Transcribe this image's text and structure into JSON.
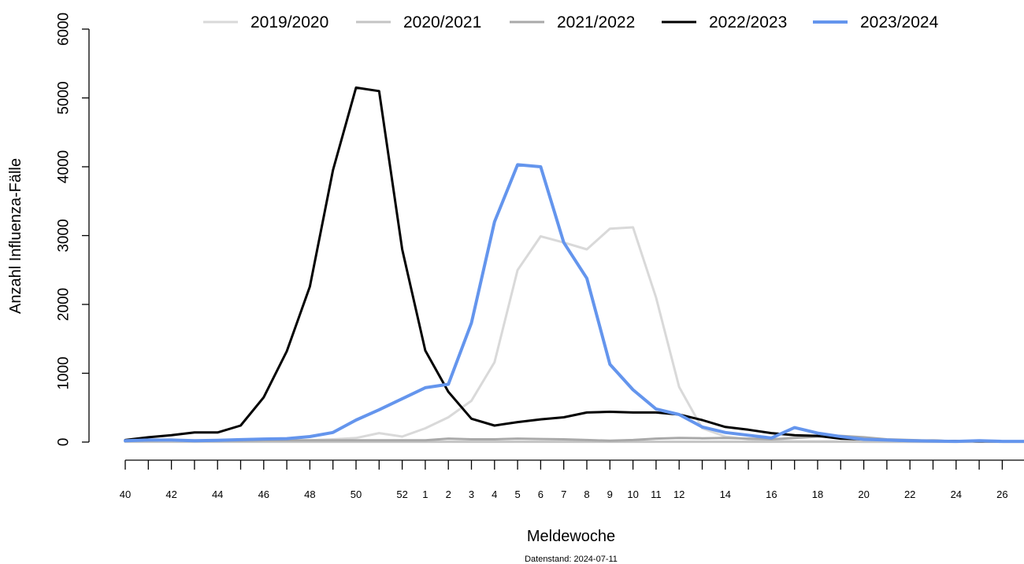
{
  "chart_data": {
    "type": "line",
    "title": "",
    "xlabel": "Meldewoche",
    "ylabel": "Anzahl Influenza-Fälle",
    "caption": "Datenstand: 2024-07-11",
    "ylim": [
      0,
      6000
    ],
    "yticks": [
      0,
      1000,
      2000,
      3000,
      4000,
      5000,
      6000
    ],
    "grid": false,
    "legend_position": "top",
    "x": [
      "40",
      "41",
      "42",
      "43",
      "44",
      "45",
      "46",
      "47",
      "48",
      "49",
      "50",
      "51",
      "52",
      "1",
      "2",
      "3",
      "4",
      "5",
      "6",
      "7",
      "8",
      "9",
      "10",
      "11",
      "12",
      "13",
      "14",
      "15",
      "16",
      "17",
      "18",
      "19",
      "20",
      "21",
      "22",
      "23",
      "24",
      "25",
      "26",
      "27"
    ],
    "x_tick_labels": [
      {
        "week": "40",
        "label": "40"
      },
      {
        "week": "42",
        "label": "42"
      },
      {
        "week": "44",
        "label": "44"
      },
      {
        "week": "46",
        "label": "46"
      },
      {
        "week": "48",
        "label": "48"
      },
      {
        "week": "50",
        "label": "50"
      },
      {
        "week": "52",
        "label": "52"
      },
      {
        "week": "1",
        "label": "1"
      },
      {
        "week": "2",
        "label": "2"
      },
      {
        "week": "3",
        "label": "3"
      },
      {
        "week": "4",
        "label": "4"
      },
      {
        "week": "5",
        "label": "5"
      },
      {
        "week": "6",
        "label": "6"
      },
      {
        "week": "7",
        "label": "7"
      },
      {
        "week": "8",
        "label": "8"
      },
      {
        "week": "9",
        "label": "9"
      },
      {
        "week": "10",
        "label": "10"
      },
      {
        "week": "11",
        "label": "11"
      },
      {
        "week": "12",
        "label": "12"
      },
      {
        "week": "14",
        "label": "14"
      },
      {
        "week": "16",
        "label": "16"
      },
      {
        "week": "18",
        "label": "18"
      },
      {
        "week": "20",
        "label": "20"
      },
      {
        "week": "22",
        "label": "22"
      },
      {
        "week": "24",
        "label": "24"
      },
      {
        "week": "26",
        "label": "26"
      }
    ],
    "series": [
      {
        "name": "2019/2020",
        "color": "#d9d9d9",
        "width": 3,
        "values": [
          10,
          10,
          10,
          10,
          10,
          15,
          15,
          20,
          25,
          40,
          60,
          130,
          80,
          200,
          360,
          600,
          1160,
          2500,
          2990,
          2900,
          2800,
          3100,
          3120,
          2100,
          800,
          200,
          80,
          40,
          20,
          10,
          10,
          10,
          5,
          5,
          5,
          5,
          5,
          5,
          5,
          5
        ]
      },
      {
        "name": "2020/2021",
        "color": "#c4c4c4",
        "width": 3,
        "values": [
          5,
          5,
          5,
          5,
          5,
          5,
          5,
          5,
          5,
          5,
          5,
          5,
          5,
          5,
          5,
          5,
          5,
          5,
          5,
          5,
          5,
          5,
          5,
          5,
          5,
          5,
          5,
          5,
          5,
          5,
          5,
          5,
          5,
          5,
          5,
          5,
          5,
          5,
          5,
          5
        ]
      },
      {
        "name": "2021/2022",
        "color": "#a9a9a9",
        "width": 3,
        "values": [
          20,
          20,
          25,
          20,
          20,
          20,
          25,
          25,
          25,
          25,
          25,
          25,
          25,
          25,
          50,
          40,
          40,
          50,
          45,
          40,
          30,
          20,
          30,
          50,
          60,
          55,
          60,
          50,
          40,
          60,
          80,
          90,
          70,
          40,
          30,
          20,
          15,
          10,
          10,
          10
        ]
      },
      {
        "name": "2022/2023",
        "color": "#000000",
        "width": 3,
        "values": [
          30,
          70,
          100,
          140,
          140,
          240,
          650,
          1320,
          2260,
          3950,
          5150,
          5100,
          2800,
          1330,
          730,
          340,
          240,
          290,
          330,
          360,
          430,
          440,
          430,
          430,
          400,
          320,
          220,
          180,
          130,
          100,
          90,
          50,
          40,
          30,
          20,
          20,
          15,
          10,
          10,
          10
        ]
      },
      {
        "name": "2023/2024",
        "color": "#6495ed",
        "width": 4,
        "values": [
          20,
          30,
          30,
          20,
          25,
          35,
          45,
          50,
          80,
          140,
          320,
          470,
          630,
          790,
          840,
          1730,
          3200,
          4030,
          4000,
          2900,
          2380,
          1130,
          760,
          480,
          400,
          220,
          140,
          100,
          60,
          210,
          130,
          80,
          40,
          30,
          20,
          15,
          10,
          20,
          10,
          10
        ]
      }
    ]
  }
}
